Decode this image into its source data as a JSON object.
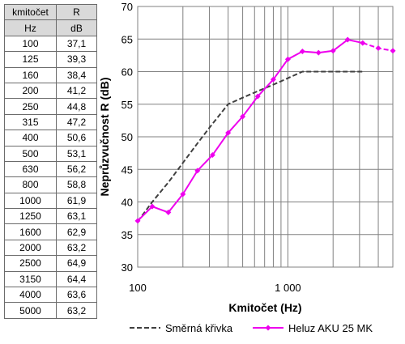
{
  "table": {
    "headers": [
      "kmitočet",
      "R"
    ],
    "units": [
      "Hz",
      "dB"
    ],
    "rows": [
      [
        "100",
        "37,1"
      ],
      [
        "125",
        "39,3"
      ],
      [
        "160",
        "38,4"
      ],
      [
        "200",
        "41,2"
      ],
      [
        "250",
        "44,8"
      ],
      [
        "315",
        "47,2"
      ],
      [
        "400",
        "50,6"
      ],
      [
        "500",
        "53,1"
      ],
      [
        "630",
        "56,2"
      ],
      [
        "800",
        "58,8"
      ],
      [
        "1000",
        "61,9"
      ],
      [
        "1250",
        "63,1"
      ],
      [
        "1600",
        "62,9"
      ],
      [
        "2000",
        "63,2"
      ],
      [
        "2500",
        "64,9"
      ],
      [
        "3150",
        "64,4"
      ],
      [
        "4000",
        "63,6"
      ],
      [
        "5000",
        "63,2"
      ]
    ]
  },
  "chart_data": {
    "type": "line",
    "xlabel": "Kmitočet (Hz)",
    "ylabel": "Neprůzvučnost R (dB)",
    "xscale": "log",
    "xlim": [
      100,
      5000
    ],
    "ylim": [
      30,
      70
    ],
    "yticks": [
      30,
      35,
      40,
      45,
      50,
      55,
      60,
      65,
      70
    ],
    "xticks": [
      {
        "value": 100,
        "label": "100"
      },
      {
        "value": 1000,
        "label": "1 000"
      }
    ],
    "grid": true,
    "legend_position": "bottom",
    "series": [
      {
        "name": "Směrná křivka",
        "color": "#404040",
        "style": "dashed",
        "points": [
          {
            "x": 100,
            "y": 37
          },
          {
            "x": 125,
            "y": 40
          },
          {
            "x": 160,
            "y": 43
          },
          {
            "x": 200,
            "y": 46
          },
          {
            "x": 250,
            "y": 49
          },
          {
            "x": 315,
            "y": 52
          },
          {
            "x": 400,
            "y": 55
          },
          {
            "x": 500,
            "y": 56
          },
          {
            "x": 630,
            "y": 57
          },
          {
            "x": 800,
            "y": 58
          },
          {
            "x": 1000,
            "y": 59
          },
          {
            "x": 1250,
            "y": 60
          },
          {
            "x": 1600,
            "y": 60
          },
          {
            "x": 2000,
            "y": 60
          },
          {
            "x": 2500,
            "y": 60
          },
          {
            "x": 3150,
            "y": 60
          }
        ]
      },
      {
        "name": "Heluz AKU 25 MK",
        "color": "#ee00ee",
        "style": "solid",
        "marker": "diamond",
        "points": [
          {
            "x": 100,
            "y": 37.1
          },
          {
            "x": 125,
            "y": 39.3
          },
          {
            "x": 160,
            "y": 38.4
          },
          {
            "x": 200,
            "y": 41.2
          },
          {
            "x": 250,
            "y": 44.8
          },
          {
            "x": 315,
            "y": 47.2
          },
          {
            "x": 400,
            "y": 50.6
          },
          {
            "x": 500,
            "y": 53.1
          },
          {
            "x": 630,
            "y": 56.2
          },
          {
            "x": 800,
            "y": 58.8
          },
          {
            "x": 1000,
            "y": 61.9
          },
          {
            "x": 1250,
            "y": 63.1
          },
          {
            "x": 1600,
            "y": 62.9
          },
          {
            "x": 2000,
            "y": 63.2
          },
          {
            "x": 2500,
            "y": 64.9
          },
          {
            "x": 3150,
            "y": 64.4
          },
          {
            "x": 4000,
            "y": 63.6
          },
          {
            "x": 5000,
            "y": 63.2
          }
        ],
        "dashed_from_x": 3150
      }
    ]
  }
}
